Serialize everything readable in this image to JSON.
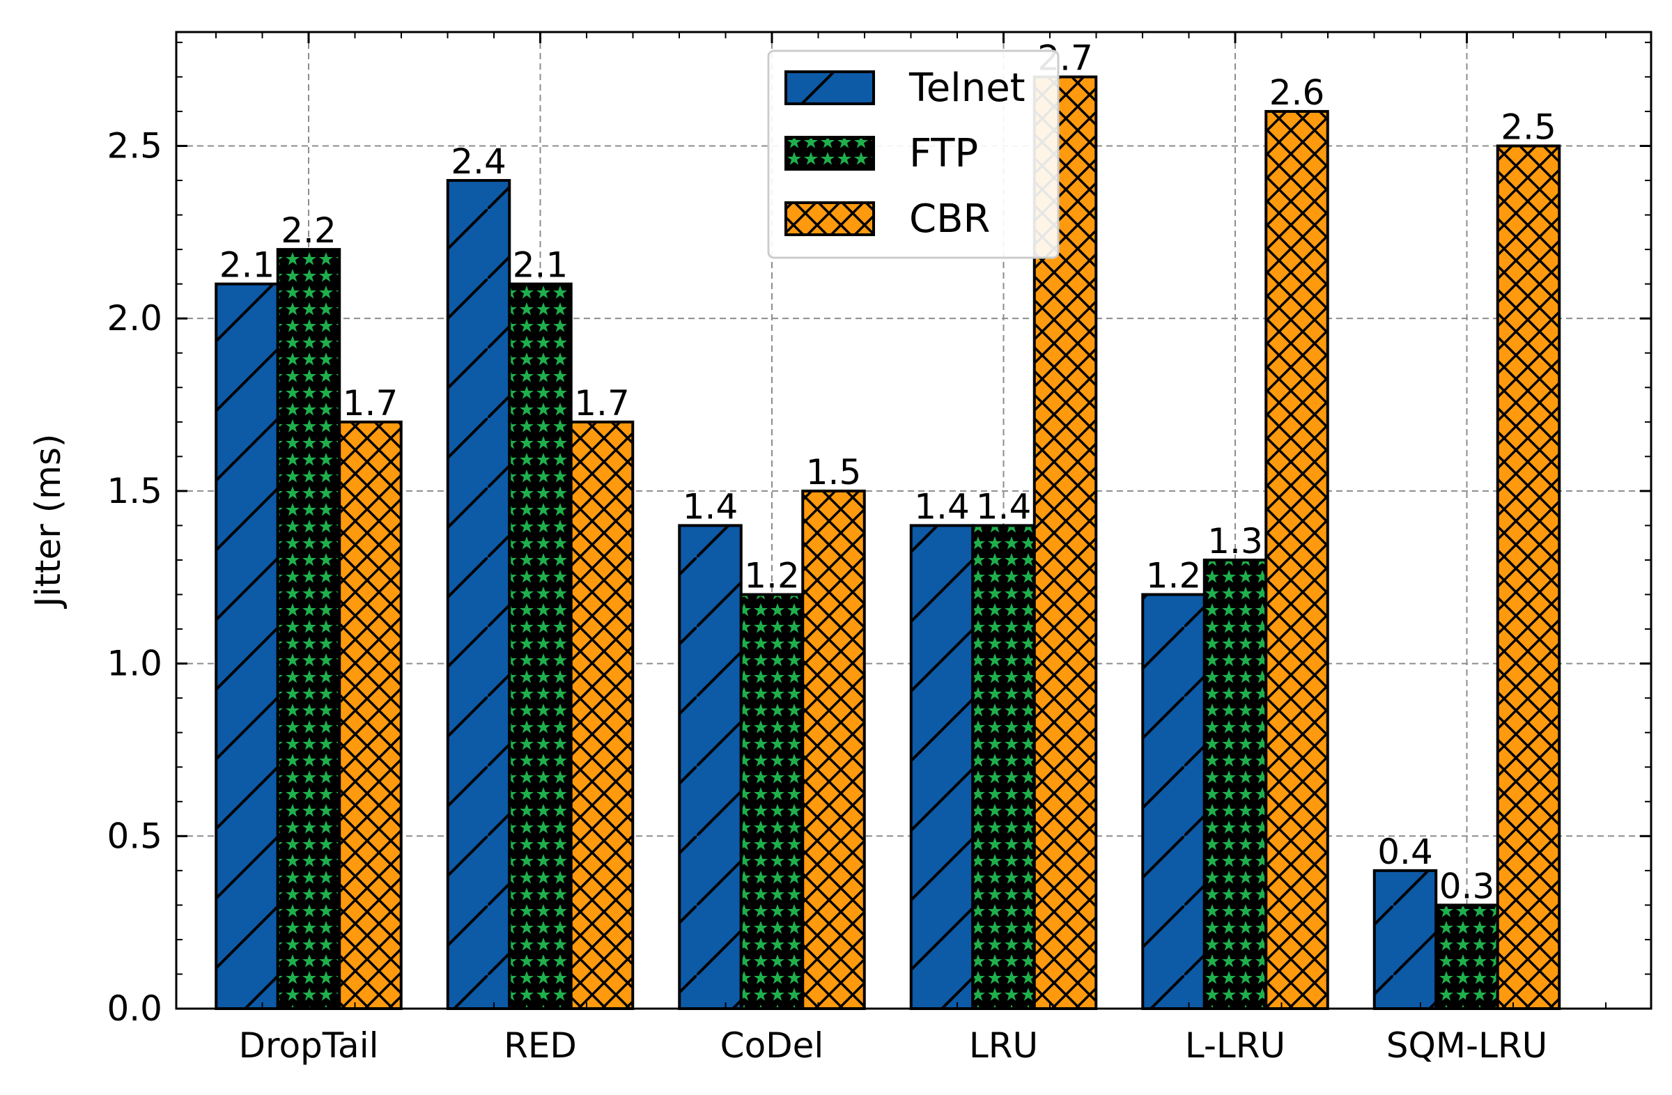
{
  "chart_data": {
    "type": "bar",
    "title": "",
    "xlabel": "",
    "ylabel": "Jitter (ms)",
    "categories": [
      "DropTail",
      "RED",
      "CoDel",
      "LRU",
      "L-LRU",
      "SQM-LRU"
    ],
    "series": [
      {
        "name": "Telnet",
        "values": [
          2.1,
          2.4,
          1.4,
          1.4,
          1.2,
          0.4
        ],
        "color": "#0d5aa7",
        "pattern": "diagonal-hatch"
      },
      {
        "name": "FTP",
        "values": [
          2.2,
          2.1,
          1.2,
          1.4,
          1.3,
          0.3
        ],
        "color": "#1fb04c",
        "pattern": "star-pattern"
      },
      {
        "name": "CBR",
        "values": [
          1.7,
          1.7,
          1.5,
          2.7,
          2.6,
          2.5
        ],
        "color": "#ff9a0e",
        "pattern": "cross-hatch"
      }
    ],
    "data_labels": [
      [
        "2.1",
        "2.4",
        "1.4",
        "1.4",
        "1.2",
        "0.4"
      ],
      [
        "2.2",
        "2.1",
        "1.2",
        "1.4",
        "1.3",
        "0.3"
      ],
      [
        "1.7",
        "1.7",
        "1.5",
        "2.7",
        "2.6",
        "2.5"
      ]
    ],
    "ylim": [
      0,
      2.83
    ],
    "yticks": [
      0.0,
      0.5,
      1.0,
      1.5,
      2.0,
      2.5
    ],
    "ytick_labels": [
      "0.0",
      "0.5",
      "1.0",
      "1.5",
      "2.0",
      "2.5"
    ],
    "grid": true,
    "legend": "top-center"
  }
}
